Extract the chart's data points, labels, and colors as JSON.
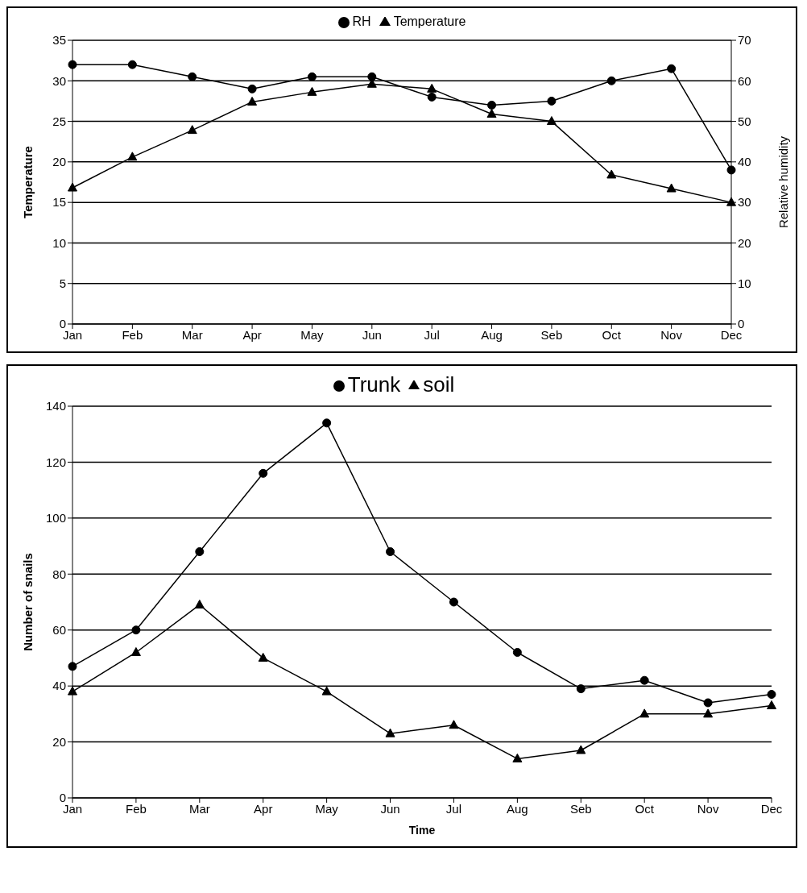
{
  "chart_data": [
    {
      "type": "line",
      "categories": [
        "Jan",
        "Feb",
        "Mar",
        "Apr",
        "May",
        "Jun",
        "Jul",
        "Aug",
        "Seb",
        "Oct",
        "Nov",
        "Dec"
      ],
      "ylabel": "Temperature",
      "y2label": "Relative humidity",
      "ylim": [
        0,
        35
      ],
      "yticks": [
        0,
        5,
        10,
        15,
        20,
        25,
        30,
        35
      ],
      "y2lim": [
        0,
        70
      ],
      "y2ticks": [
        0,
        10,
        20,
        30,
        40,
        50,
        60,
        70
      ],
      "grid": "y",
      "legend": "top",
      "line_style": "solid",
      "series": [
        {
          "name": "RH",
          "color": "#000000",
          "marker": "circle",
          "axis": "y2",
          "values": [
            64,
            64,
            61,
            58,
            61,
            61,
            56,
            54,
            55,
            60,
            63,
            38
          ]
        },
        {
          "name": "Temperature",
          "color": "#000000",
          "marker": "triangle",
          "values": [
            16.8,
            20.6,
            23.9,
            27.4,
            28.6,
            29.6,
            29.0,
            25.9,
            25.0,
            18.4,
            16.7,
            15.0
          ]
        }
      ]
    },
    {
      "type": "line",
      "categories": [
        "Jan",
        "Feb",
        "Mar",
        "Apr",
        "May",
        "Jun",
        "Jul",
        "Aug",
        "Seb",
        "Oct",
        "Nov",
        "Dec"
      ],
      "xlabel": "Time",
      "ylabel": "Number of snails",
      "ylim": [
        0,
        140
      ],
      "yticks": [
        0,
        20,
        40,
        60,
        80,
        100,
        120,
        140
      ],
      "grid": "y",
      "legend": "top",
      "line_style": "solid",
      "series": [
        {
          "name": "soil",
          "color": "#000000",
          "marker": "triangle",
          "values": [
            38,
            52,
            69,
            50,
            38,
            23,
            26,
            14,
            17,
            30,
            30,
            33
          ]
        },
        {
          "name": "Trunk",
          "color": "#000000",
          "marker": "circle",
          "values": [
            47,
            60,
            88,
            116,
            134,
            88,
            70,
            52,
            39,
            42,
            34,
            37
          ]
        }
      ]
    }
  ]
}
